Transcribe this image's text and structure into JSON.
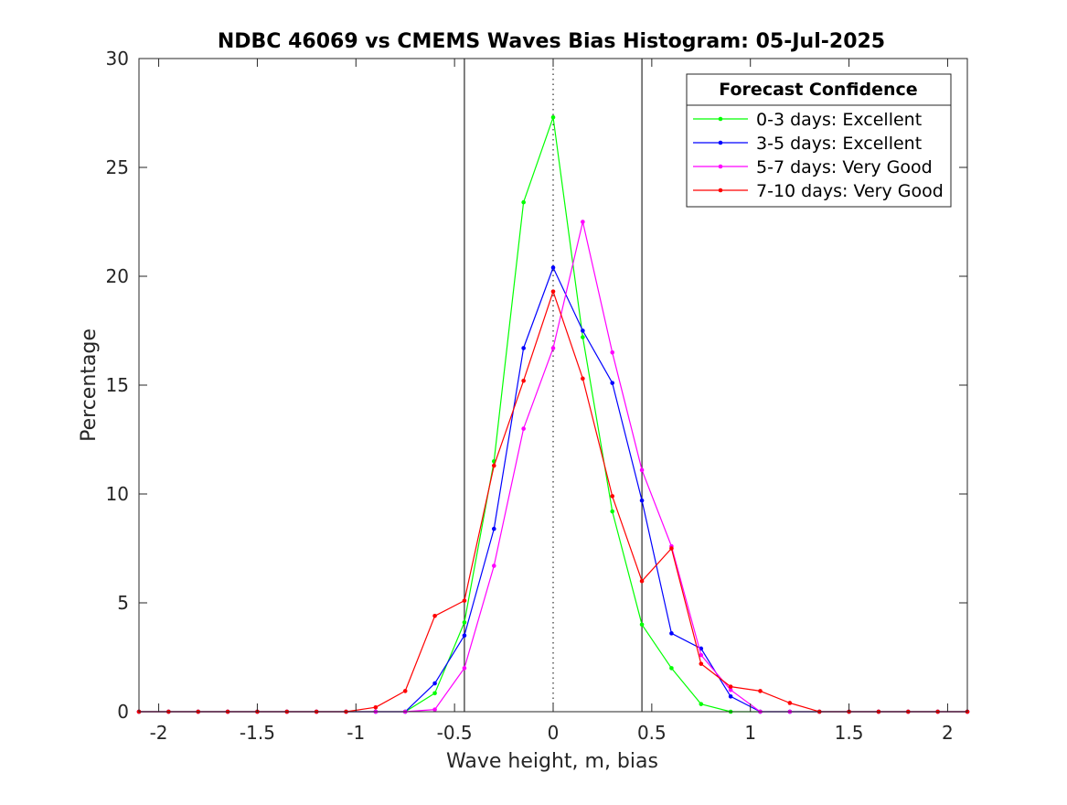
{
  "chart_data": {
    "type": "line",
    "title": "NDBC 46069 vs CMEMS Waves Bias Histogram: 05-Jul-2025",
    "xlabel": "Wave height, m, bias",
    "ylabel": "Percentage",
    "xlim": [
      -2.1,
      2.1
    ],
    "ylim": [
      0,
      30
    ],
    "xticks": [
      -2,
      -1.5,
      -1,
      -0.5,
      0,
      0.5,
      1,
      1.5,
      2
    ],
    "xtick_labels": [
      "-2",
      "-1.5",
      "-1",
      "-0.5",
      "0",
      "0.5",
      "1",
      "1.5",
      "2"
    ],
    "yticks": [
      0,
      5,
      10,
      15,
      20,
      25,
      30
    ],
    "ytick_labels": [
      "0",
      "5",
      "10",
      "15",
      "20",
      "25",
      "30"
    ],
    "grid": false,
    "legend_title": "Forecast Confidence",
    "legend_position": "top-right",
    "reference_lines": [
      {
        "x": -0.45,
        "style": "solid",
        "color": "#000000"
      },
      {
        "x": 0,
        "style": "dotted",
        "color": "#000000"
      },
      {
        "x": 0.45,
        "style": "solid",
        "color": "#000000"
      }
    ],
    "x": [
      -2.1,
      -1.95,
      -1.8,
      -1.65,
      -1.5,
      -1.35,
      -1.2,
      -1.05,
      -0.9,
      -0.75,
      -0.6,
      -0.45,
      -0.3,
      -0.15,
      0,
      0.15,
      0.3,
      0.45,
      0.6,
      0.75,
      0.9,
      1.05,
      1.2,
      1.35,
      1.5,
      1.65,
      1.8,
      1.95,
      2.1
    ],
    "series": [
      {
        "name": "0-3 days: Excellent",
        "color": "#00ff00",
        "values": [
          0,
          0,
          0,
          0,
          0,
          0,
          0,
          0,
          0,
          0,
          0.85,
          4.1,
          11.5,
          23.4,
          27.3,
          17.2,
          9.2,
          4.0,
          2.0,
          0.35,
          0,
          0,
          0,
          0,
          0,
          0,
          0,
          0,
          0
        ]
      },
      {
        "name": "3-5 days: Excellent",
        "color": "#0000ff",
        "values": [
          0,
          0,
          0,
          0,
          0,
          0,
          0,
          0,
          0,
          0,
          1.3,
          3.5,
          8.4,
          16.7,
          20.4,
          17.5,
          15.1,
          9.7,
          3.6,
          2.9,
          0.7,
          0,
          0,
          0,
          0,
          0,
          0,
          0,
          0
        ]
      },
      {
        "name": "5-7 days: Very Good",
        "color": "#ff00ff",
        "values": [
          0,
          0,
          0,
          0,
          0,
          0,
          0,
          0,
          0,
          0,
          0.1,
          2.0,
          6.7,
          13.0,
          16.7,
          22.5,
          16.5,
          11.1,
          7.6,
          2.6,
          1.0,
          0,
          0,
          0,
          0,
          0,
          0,
          0,
          0
        ]
      },
      {
        "name": "7-10 days: Very Good",
        "color": "#ff0000",
        "values": [
          0,
          0,
          0,
          0,
          0,
          0,
          0,
          0,
          0.2,
          0.95,
          4.4,
          5.1,
          11.3,
          15.2,
          19.3,
          15.3,
          9.9,
          6.0,
          7.5,
          2.2,
          1.15,
          0.95,
          0.4,
          0,
          0,
          0,
          0,
          0,
          0
        ]
      }
    ]
  }
}
